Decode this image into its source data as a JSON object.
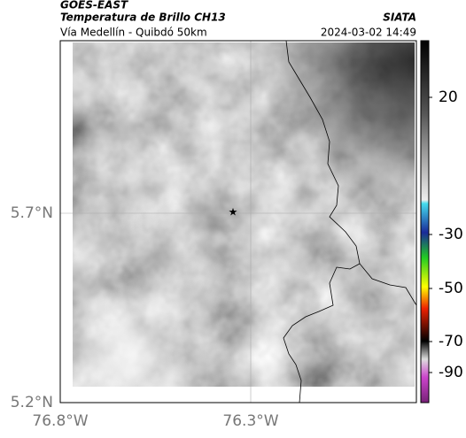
{
  "header": {
    "source": "GOES-EAST",
    "title": "Temperatura de Brillo CH13",
    "brand": "SIATA",
    "subtitle": "Vía Medellín - Quibdó 50km",
    "timestamp": "2024-03-02 14:49"
  },
  "map": {
    "lat_labels": [
      "5.7°N",
      "5.2°N"
    ],
    "lon_labels": [
      "76.8°W",
      "76.3°W"
    ]
  },
  "colorbar": {
    "labels": [
      "20",
      "-30",
      "-50",
      "-70",
      "-90"
    ]
  }
}
